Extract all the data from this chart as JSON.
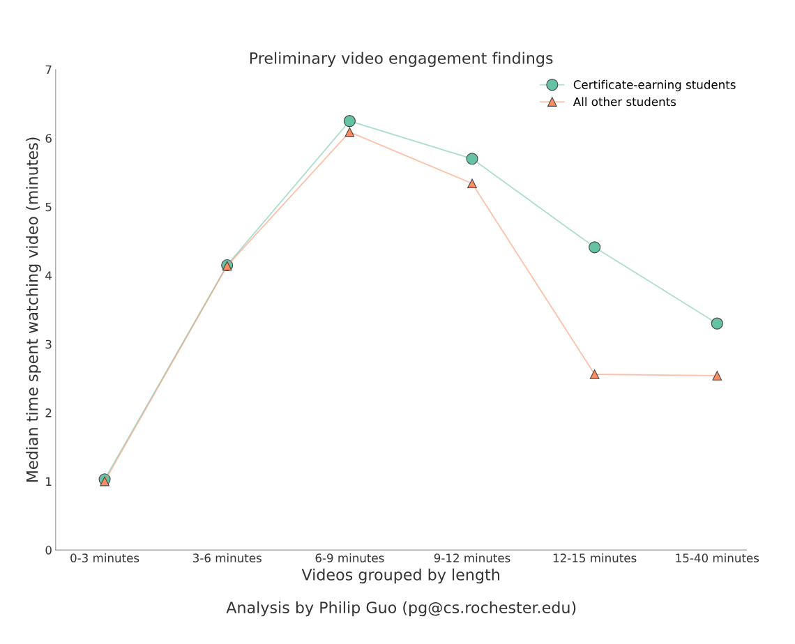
{
  "chart_data": {
    "type": "line",
    "title": "Preliminary video engagement findings",
    "xlabel": "Videos grouped by length",
    "ylabel": "Median time spent watching video (minutes)",
    "categories": [
      "0-3 minutes",
      "3-6 minutes",
      "6-9 minutes",
      "9-12 minutes",
      "12-15 minutes",
      "15-40 minutes"
    ],
    "series": [
      {
        "name": "Certificate-earning students",
        "color": "#66c2a5",
        "marker": "circle",
        "values": [
          1.03,
          4.15,
          6.25,
          5.7,
          4.41,
          3.3
        ]
      },
      {
        "name": "All other students",
        "color": "#fc8d62",
        "marker": "triangle",
        "values": [
          1.0,
          4.14,
          6.09,
          5.34,
          2.56,
          2.54
        ]
      }
    ],
    "ylim": [
      0,
      7
    ],
    "yticks": [
      0,
      1,
      2,
      3,
      4,
      5,
      6,
      7
    ],
    "grid": false,
    "legend": "top right",
    "line_style": "solid",
    "annotations": [
      "Analysis by Philip Guo (pg@cs.rochester.edu)"
    ]
  }
}
